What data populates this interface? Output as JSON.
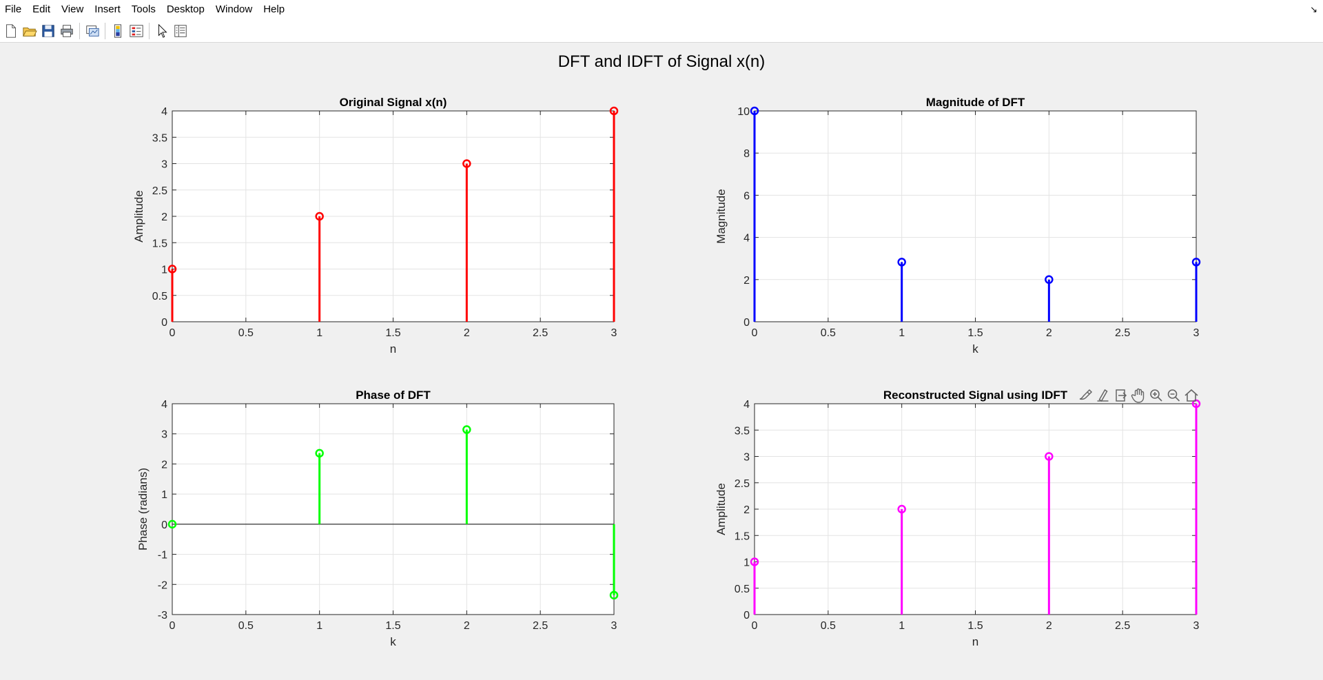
{
  "menu": [
    "File",
    "Edit",
    "View",
    "Insert",
    "Tools",
    "Desktop",
    "Window",
    "Help"
  ],
  "toolbar": {
    "icons": [
      {
        "name": "new-figure-icon",
        "group": 1
      },
      {
        "name": "open-file-icon",
        "group": 1
      },
      {
        "name": "save-icon",
        "group": 1
      },
      {
        "name": "print-icon",
        "group": 1
      },
      {
        "name": "link-plot-icon",
        "group": 2
      },
      {
        "name": "insert-colorbar-icon",
        "group": 3
      },
      {
        "name": "insert-legend-icon",
        "group": 3
      },
      {
        "name": "edit-plot-pointer-icon",
        "group": 4
      },
      {
        "name": "property-inspector-icon",
        "group": 4
      }
    ]
  },
  "figure": {
    "title": "DFT and IDFT of Signal x(n)"
  },
  "axes_toolbar_icons": [
    "brush-icon",
    "data-tips-icon",
    "export-icon",
    "pan-hand-icon",
    "zoom-in-icon",
    "zoom-out-icon",
    "restore-view-home-icon"
  ],
  "colors": {
    "red": "#ff0000",
    "blue": "#0000ff",
    "green": "#00ff00",
    "magenta": "#ff00ff",
    "grid": "#e3e3e3",
    "axis": "#262626"
  },
  "chart_data": [
    {
      "type": "stem",
      "title": "Original Signal x(n)",
      "xlabel": "n",
      "ylabel": "Amplitude",
      "x": [
        0,
        1,
        2,
        3
      ],
      "values": [
        1,
        2,
        3,
        4
      ],
      "color": "#ff0000",
      "xlim": [
        0,
        3
      ],
      "ylim": [
        0,
        4
      ],
      "xticks": [
        "0",
        "0.5",
        "1",
        "1.5",
        "2",
        "2.5",
        "3"
      ],
      "yticks": [
        "0",
        "0.5",
        "1",
        "1.5",
        "2",
        "2.5",
        "3",
        "3.5",
        "4"
      ],
      "grid": true
    },
    {
      "type": "stem",
      "title": "Magnitude of DFT",
      "xlabel": "k",
      "ylabel": "Magnitude",
      "x": [
        0,
        1,
        2,
        3
      ],
      "values": [
        10,
        2.83,
        2,
        2.83
      ],
      "color": "#0000ff",
      "xlim": [
        0,
        3
      ],
      "ylim": [
        0,
        10
      ],
      "xticks": [
        "0",
        "0.5",
        "1",
        "1.5",
        "2",
        "2.5",
        "3"
      ],
      "yticks": [
        "0",
        "2",
        "4",
        "6",
        "8",
        "10"
      ],
      "grid": true
    },
    {
      "type": "stem",
      "title": "Phase of DFT",
      "xlabel": "k",
      "ylabel": "Phase (radians)",
      "x": [
        0,
        1,
        2,
        3
      ],
      "values": [
        0,
        2.356,
        3.1416,
        -2.356
      ],
      "color": "#00ff00",
      "xlim": [
        0,
        3
      ],
      "ylim": [
        -3,
        4
      ],
      "xticks": [
        "0",
        "0.5",
        "1",
        "1.5",
        "2",
        "2.5",
        "3"
      ],
      "yticks": [
        "-3",
        "-2",
        "-1",
        "0",
        "1",
        "2",
        "3",
        "4"
      ],
      "grid": true
    },
    {
      "type": "stem",
      "title": "Reconstructed Signal using IDFT",
      "xlabel": "n",
      "ylabel": "Amplitude",
      "x": [
        0,
        1,
        2,
        3
      ],
      "values": [
        1,
        2,
        3,
        4
      ],
      "color": "#ff00ff",
      "xlim": [
        0,
        3
      ],
      "ylim": [
        0,
        4
      ],
      "xticks": [
        "0",
        "0.5",
        "1",
        "1.5",
        "2",
        "2.5",
        "3"
      ],
      "yticks": [
        "0",
        "0.5",
        "1",
        "1.5",
        "2",
        "2.5",
        "3",
        "3.5",
        "4"
      ],
      "grid": true
    }
  ]
}
